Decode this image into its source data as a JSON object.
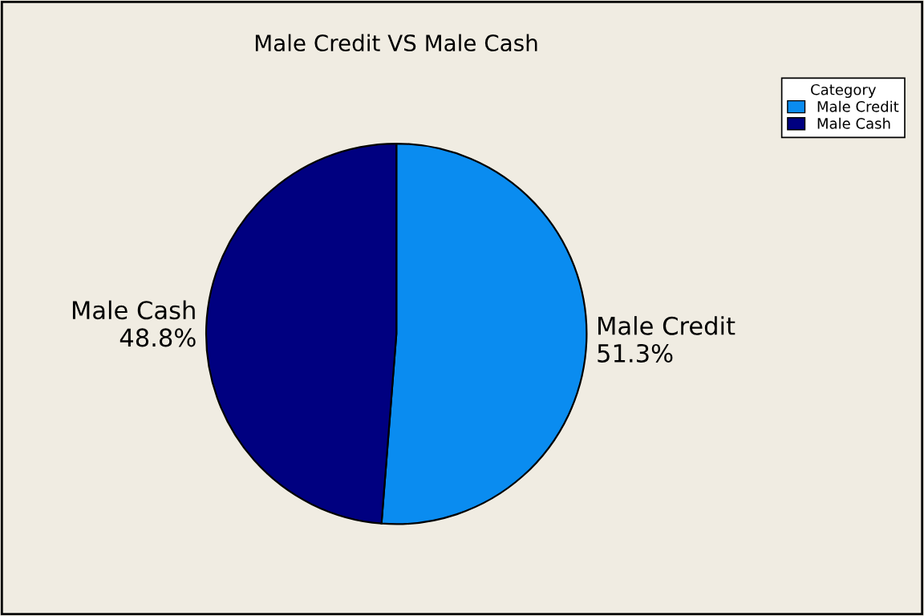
{
  "chart_data": {
    "type": "pie",
    "title": "Male Credit VS Male Cash",
    "categories": [
      "Male Credit",
      "Male Cash"
    ],
    "values": [
      51.3,
      48.8
    ],
    "value_labels": [
      "51.3%",
      "48.8%"
    ],
    "colors": [
      "#0a8cf0",
      "#000080"
    ],
    "legend_title": "Category",
    "legend": "top right"
  }
}
